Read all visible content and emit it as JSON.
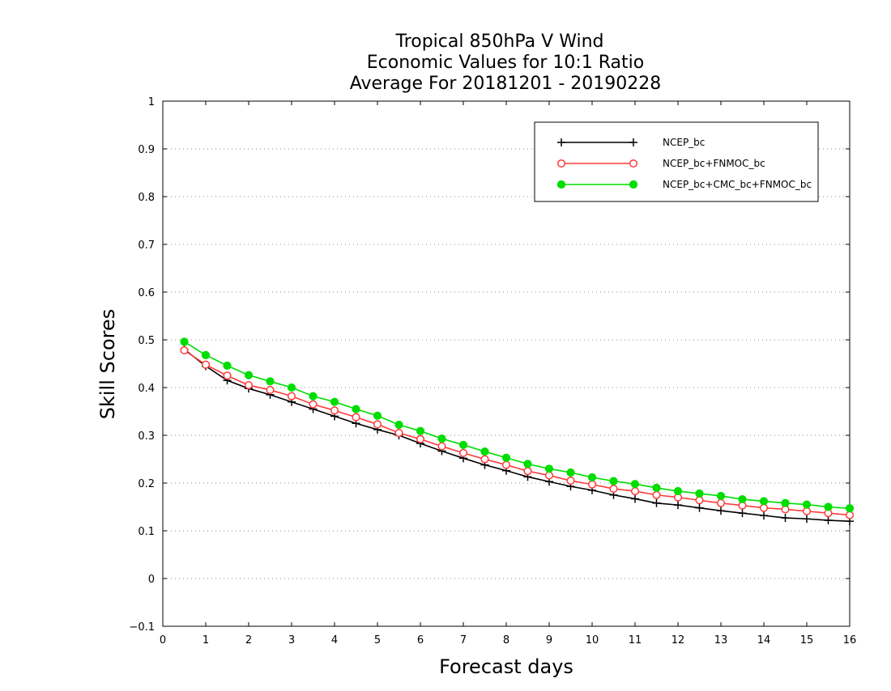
{
  "chart_data": {
    "type": "line",
    "title_lines": [
      "Tropical 850hPa V Wind",
      "Economic Values for 10:1 Ratio",
      "Average For 20181201 - 20190228"
    ],
    "xlabel": "Forecast days",
    "ylabel": "Skill Scores",
    "xlim": [
      0,
      16
    ],
    "ylim": [
      -0.1,
      1
    ],
    "x_ticks": [
      "0",
      "1",
      "2",
      "3",
      "4",
      "5",
      "6",
      "7",
      "8",
      "9",
      "10",
      "11",
      "12",
      "13",
      "14",
      "15",
      "16"
    ],
    "y_ticks": [
      "−0.1",
      "0",
      "0.1",
      "0.2",
      "0.3",
      "0.4",
      "0.5",
      "0.6",
      "0.7",
      "0.8",
      "0.9",
      "1"
    ],
    "grid": "horizontal-dotted",
    "legend_position": "top-right",
    "x": [
      0.5,
      1,
      1.5,
      2,
      2.5,
      3,
      3.5,
      4,
      4.5,
      5,
      5.5,
      6,
      6.5,
      7,
      7.5,
      8,
      8.5,
      9,
      9.5,
      10,
      10.5,
      11,
      11.5,
      12,
      12.5,
      13,
      13.5,
      14,
      14.5,
      15,
      15.5,
      16
    ],
    "series": [
      {
        "name": "NCEP_bc",
        "color": "#000000",
        "marker": "plus",
        "values": [
          0.48,
          0.445,
          0.415,
          0.398,
          0.385,
          0.37,
          0.355,
          0.34,
          0.325,
          0.312,
          0.3,
          0.283,
          0.267,
          0.252,
          0.238,
          0.226,
          0.213,
          0.203,
          0.193,
          0.185,
          0.175,
          0.167,
          0.158,
          0.154,
          0.148,
          0.142,
          0.137,
          0.132,
          0.127,
          0.125,
          0.122,
          0.12
        ]
      },
      {
        "name": "NCEP_bc+FNMOC_bc",
        "color": "#ff3b3b",
        "marker": "open-circle",
        "values": [
          0.478,
          0.448,
          0.425,
          0.405,
          0.395,
          0.382,
          0.365,
          0.352,
          0.338,
          0.323,
          0.305,
          0.292,
          0.277,
          0.263,
          0.25,
          0.238,
          0.225,
          0.216,
          0.205,
          0.197,
          0.188,
          0.183,
          0.175,
          0.17,
          0.164,
          0.158,
          0.153,
          0.148,
          0.145,
          0.141,
          0.137,
          0.133
        ]
      },
      {
        "name": "NCEP_bc+CMC_bc+FNMOC_bc",
        "color": "#00dd00",
        "marker": "filled-circle",
        "values": [
          0.496,
          0.468,
          0.446,
          0.426,
          0.413,
          0.4,
          0.382,
          0.37,
          0.355,
          0.341,
          0.322,
          0.309,
          0.293,
          0.28,
          0.266,
          0.253,
          0.24,
          0.23,
          0.222,
          0.212,
          0.204,
          0.198,
          0.19,
          0.183,
          0.178,
          0.173,
          0.166,
          0.162,
          0.158,
          0.155,
          0.15,
          0.147
        ]
      }
    ]
  }
}
